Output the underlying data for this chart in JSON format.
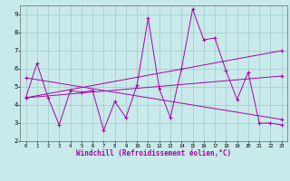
{
  "xlabel": "Windchill (Refroidissement éolien,°C)",
  "xlim": [
    -0.5,
    23.5
  ],
  "ylim": [
    2,
    9.5
  ],
  "yticks": [
    2,
    3,
    4,
    5,
    6,
    7,
    8,
    9
  ],
  "xticks": [
    0,
    1,
    2,
    3,
    4,
    5,
    6,
    7,
    8,
    9,
    10,
    11,
    12,
    13,
    14,
    15,
    16,
    17,
    18,
    19,
    20,
    21,
    22,
    23
  ],
  "bg_color": "#c8eaea",
  "grid_color": "#a0c8c8",
  "line_color": "#aa00aa",
  "curves": [
    {
      "x": [
        0,
        1,
        2,
        3,
        4,
        5,
        6,
        7,
        8,
        9,
        10,
        11,
        12,
        13,
        14,
        15,
        16,
        17,
        18,
        19,
        20,
        21,
        22,
        23
      ],
      "y": [
        4.4,
        6.3,
        4.4,
        2.9,
        4.8,
        4.7,
        4.8,
        2.6,
        4.2,
        3.3,
        5.1,
        8.8,
        4.9,
        3.3,
        6.0,
        9.3,
        7.6,
        7.7,
        5.9,
        4.3,
        5.8,
        3.0,
        3.0,
        2.9
      ]
    },
    {
      "x": [
        0,
        23
      ],
      "y": [
        4.4,
        7.0
      ]
    },
    {
      "x": [
        0,
        23
      ],
      "y": [
        4.4,
        5.6
      ]
    },
    {
      "x": [
        0,
        23
      ],
      "y": [
        5.5,
        3.2
      ]
    }
  ]
}
